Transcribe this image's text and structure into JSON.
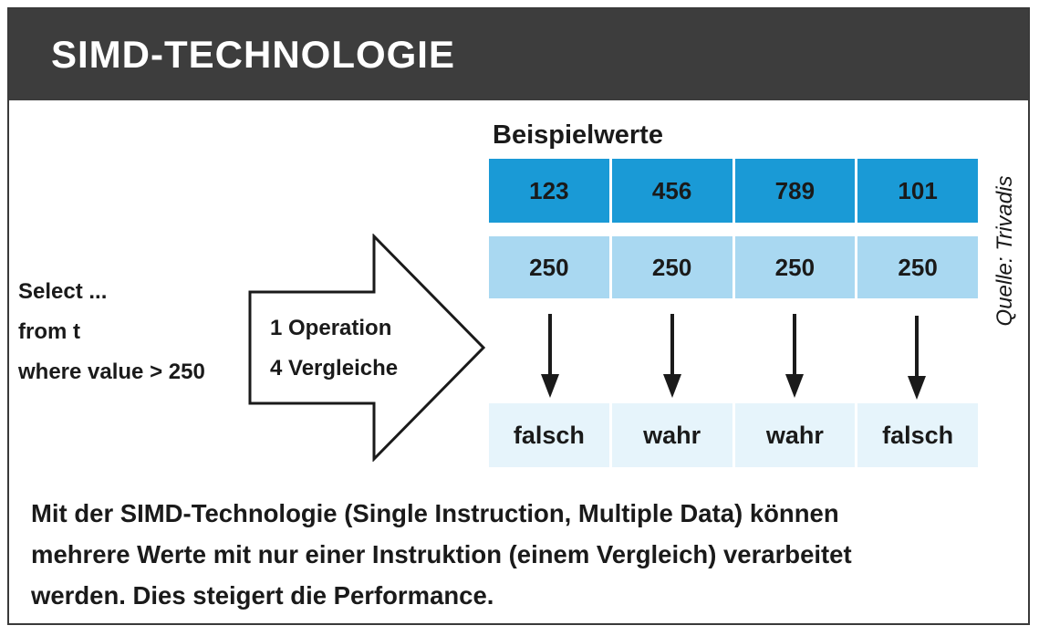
{
  "header": {
    "title": "SIMD-TECHNOLOGIE"
  },
  "query": {
    "lines": [
      "Select ...",
      "from t",
      "where value > 250"
    ]
  },
  "arrow": {
    "lines": [
      "1 Operation",
      "4 Vergleiche"
    ]
  },
  "section_label": "Beispielwerte",
  "values": [
    "123",
    "456",
    "789",
    "101"
  ],
  "thresholds": [
    "250",
    "250",
    "250",
    "250"
  ],
  "results": [
    "falsch",
    "wahr",
    "wahr",
    "falsch"
  ],
  "source": "Quelle: Trivadis",
  "caption": {
    "lines": [
      "Mit der SIMD-Technologie (Single Instruction, Multiple Data) können",
      "mehrere Werte mit nur einer Instruktion (einem Vergleich) verarbeitet",
      "werden. Dies steigert die Performance."
    ]
  },
  "colors": {
    "header_bg": "#3d3d3d",
    "values_bg": "#1a9ad6",
    "thresholds_bg": "#a9d8f1",
    "results_bg": "#e6f4fb"
  }
}
